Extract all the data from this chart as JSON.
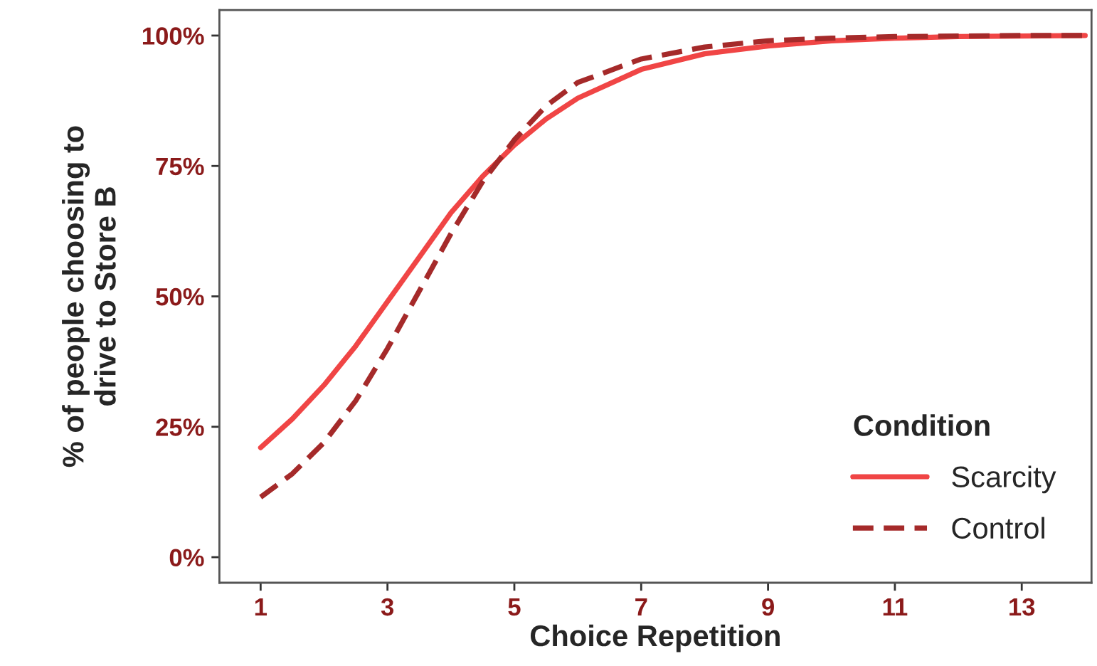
{
  "chart_data": {
    "type": "line",
    "xlabel": "Choice Repetition",
    "ylabel": "% of people choosing to\ndrive to Store B",
    "legend_title": "Condition",
    "legend": "bottom right",
    "grid": false,
    "x": [
      1,
      1.5,
      2,
      2.5,
      3,
      3.5,
      4,
      4.5,
      5,
      5.5,
      6,
      7,
      8,
      9,
      10,
      11,
      12,
      13,
      14
    ],
    "series": [
      {
        "name": "Scarcity",
        "color": "#f04545",
        "line_style": "solid",
        "values": [
          21,
          26.5,
          33,
          40.5,
          49,
          57.5,
          66,
          73,
          79,
          84,
          88,
          93.5,
          96.5,
          98,
          99,
          99.5,
          99.8,
          99.9,
          100
        ]
      },
      {
        "name": "Control",
        "color": "#a52a2a",
        "line_style": "dashed",
        "values": [
          11.5,
          16,
          22,
          30,
          40,
          51,
          62,
          72,
          80,
          86.5,
          91,
          95.5,
          97.8,
          99,
          99.5,
          99.8,
          99.9,
          100,
          100
        ]
      }
    ],
    "xlim": [
      0.35,
      14.1
    ],
    "xticks": [
      1,
      3,
      5,
      7,
      9,
      11,
      13
    ],
    "ylim": [
      -4.9,
      104.9
    ],
    "yticks": [
      {
        "value": 0,
        "label": "0%"
      },
      {
        "value": 25,
        "label": "25%"
      },
      {
        "value": 50,
        "label": "50%"
      },
      {
        "value": 75,
        "label": "75%"
      },
      {
        "value": 100,
        "label": "100%"
      }
    ]
  }
}
